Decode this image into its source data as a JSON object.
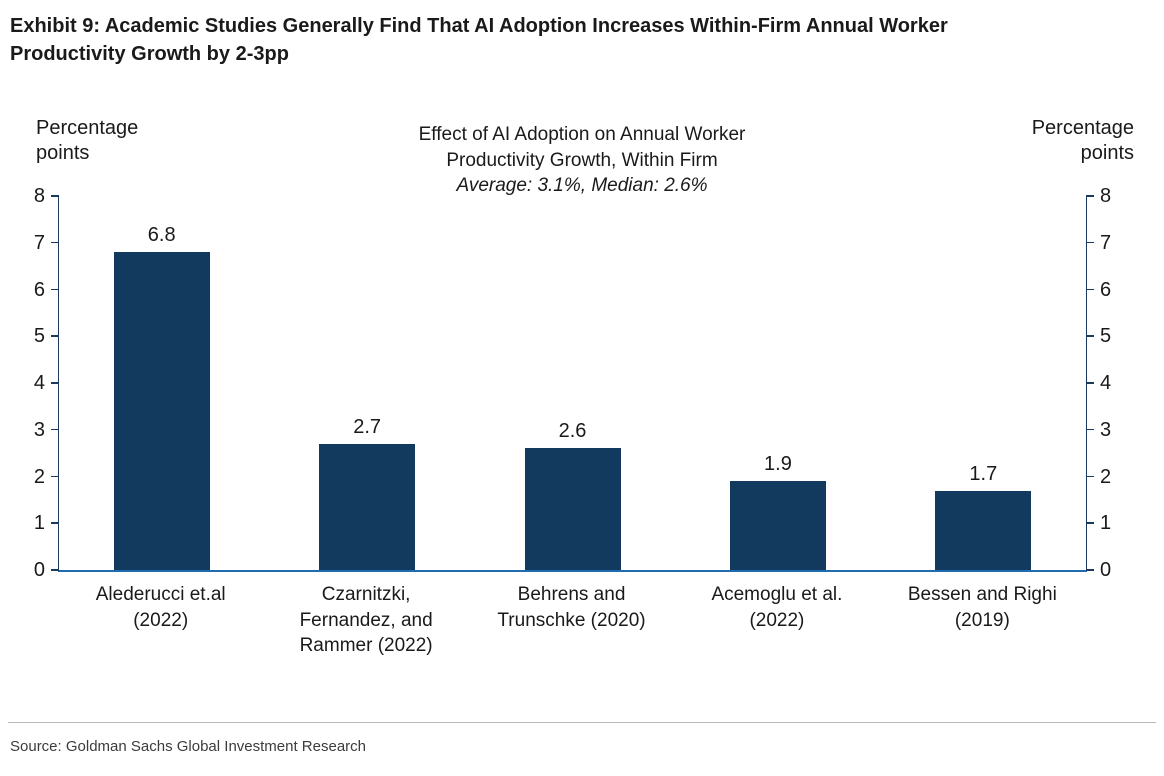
{
  "header": {
    "title": "Exhibit 9: Academic Studies Generally Find That AI Adoption Increases Within-Firm Annual Worker Productivity Growth by 2-3pp"
  },
  "chart": {
    "left_axis_label": "Percentage points",
    "right_axis_label": "Percentage points",
    "title_line1": "Effect of AI Adoption on Annual Worker",
    "title_line2": "Productivity Growth, Within Firm",
    "subtitle": "Average: 3.1%, Median: 2.6%"
  },
  "chart_data": {
    "type": "bar",
    "title": "Effect of AI Adoption on Annual Worker Productivity Growth, Within Firm",
    "subtitle": "Average: 3.1%, Median: 2.6%",
    "categories": [
      "Alederucci et.al (2022)",
      "Czarnitzki, Fernandez, and Rammer (2022)",
      "Behrens and Trunschke (2020)",
      "Acemoglu et al.(2022)",
      "Bessen and Righi (2019)"
    ],
    "values": [
      6.8,
      2.7,
      2.6,
      1.9,
      1.7
    ],
    "xlabel": "",
    "ylabel": "Percentage points",
    "ylim": [
      0,
      8
    ],
    "ytick_step": 1,
    "bar_color": "#123a5f",
    "axis_color": "#1f6cb0",
    "grid": false,
    "legend": false,
    "value_labels": true
  },
  "footer": {
    "source": "Source: Goldman Sachs Global Investment Research"
  }
}
